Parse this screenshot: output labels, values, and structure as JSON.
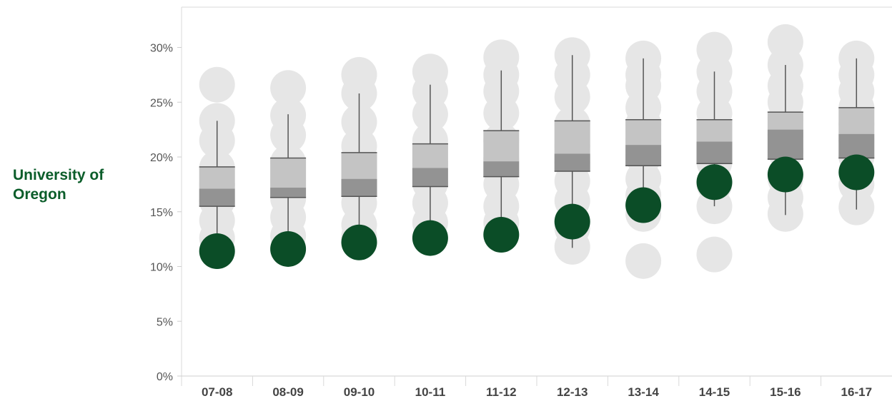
{
  "row_label": "University of Oregon",
  "colors": {
    "highlight": "#0b4d27",
    "peer_dot": "#e6e6e6",
    "box_upper": "#c4c4c4",
    "box_lower": "#939393",
    "whisker": "#555555",
    "axis_text": "#555555",
    "category_text": "#444444",
    "grid": "#e6e6e6"
  },
  "chart_data": {
    "type": "box-plot with dot strip",
    "title": "",
    "xlabel": "",
    "ylabel": "",
    "categories": [
      "07-08",
      "08-09",
      "09-10",
      "10-11",
      "11-12",
      "12-13",
      "13-14",
      "14-15",
      "15-16",
      "16-17"
    ],
    "y_ticks": [
      "0%",
      "5%",
      "10%",
      "15%",
      "20%",
      "25%",
      "30%"
    ],
    "y_tick_values": [
      0,
      5,
      10,
      15,
      20,
      25,
      30
    ],
    "ylim": [
      0,
      33
    ],
    "gridlines": false,
    "series": [
      {
        "name": "University of Oregon",
        "values": [
          11.4,
          11.6,
          12.2,
          12.6,
          12.9,
          14.1,
          15.6,
          17.7,
          18.4,
          18.6
        ]
      }
    ],
    "boxes": [
      {
        "whisker_low": 11.5,
        "q1": 15.5,
        "median": 17.1,
        "q3": 19.1,
        "whisker_high": 23.3
      },
      {
        "whisker_low": 11.7,
        "q1": 16.3,
        "median": 17.2,
        "q3": 19.9,
        "whisker_high": 23.9
      },
      {
        "whisker_low": 12.3,
        "q1": 16.4,
        "median": 18.0,
        "q3": 20.4,
        "whisker_high": 25.8
      },
      {
        "whisker_low": 12.6,
        "q1": 17.3,
        "median": 19.0,
        "q3": 21.2,
        "whisker_high": 26.6
      },
      {
        "whisker_low": 12.9,
        "q1": 18.2,
        "median": 19.6,
        "q3": 22.4,
        "whisker_high": 27.9
      },
      {
        "whisker_low": 11.7,
        "q1": 18.7,
        "median": 20.3,
        "q3": 23.3,
        "whisker_high": 29.3
      },
      {
        "whisker_low": 15.0,
        "q1": 19.2,
        "median": 21.1,
        "q3": 23.4,
        "whisker_high": 29.0
      },
      {
        "whisker_low": 15.5,
        "q1": 19.4,
        "median": 21.4,
        "q3": 23.4,
        "whisker_high": 27.8
      },
      {
        "whisker_low": 14.7,
        "q1": 19.8,
        "median": 22.5,
        "q3": 24.1,
        "whisker_high": 28.4
      },
      {
        "whisker_low": 15.2,
        "q1": 19.9,
        "median": 22.1,
        "q3": 24.5,
        "whisker_high": 29.0
      }
    ],
    "peer_points": [
      [
        26.6,
        23.3,
        21.5,
        19.0,
        17.5,
        16.0,
        14.2,
        12.6
      ],
      [
        26.3,
        23.8,
        22.0,
        19.5,
        17.8,
        16.2,
        14.5,
        12.8
      ],
      [
        27.5,
        25.8,
        23.2,
        21.0,
        19.2,
        17.5,
        15.8,
        13.8,
        12.8
      ],
      [
        27.8,
        26.0,
        23.9,
        21.5,
        19.4,
        17.6,
        15.8,
        14.0
      ],
      [
        29.1,
        27.5,
        26.0,
        24.0,
        21.5,
        19.8,
        17.5,
        15.5,
        14.0
      ],
      [
        29.3,
        27.5,
        25.5,
        23.0,
        21.0,
        19.5,
        17.8,
        16.0,
        13.5,
        11.8
      ],
      [
        29.0,
        27.5,
        26.5,
        24.5,
        23.0,
        21.5,
        20.0,
        18.0,
        16.5,
        14.8,
        10.5
      ],
      [
        29.8,
        27.8,
        26.0,
        24.0,
        22.5,
        21.0,
        19.5,
        17.5,
        15.5,
        11.1
      ],
      [
        30.5,
        28.4,
        26.5,
        25.0,
        23.5,
        22.0,
        20.5,
        18.0,
        16.3,
        14.8
      ],
      [
        29.0,
        27.5,
        26.0,
        24.5,
        23.0,
        21.5,
        20.0,
        17.5,
        15.4
      ]
    ]
  }
}
